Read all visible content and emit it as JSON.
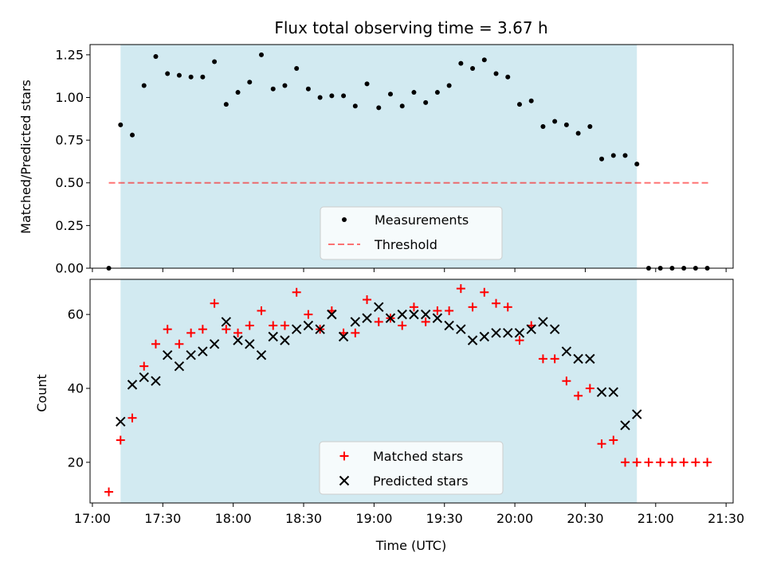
{
  "title": "Flux total observing time = 3.67 h",
  "colors": {
    "shade": "#add8e6",
    "measurement": "#000000",
    "threshold": "#ff0000",
    "matched": "#ff0000",
    "predicted": "#000000"
  },
  "chart_data": [
    {
      "type": "scatter",
      "ylabel": "Matched/Predicted stars",
      "ylim": [
        0,
        1.31
      ],
      "yticks": [
        0.0,
        0.25,
        0.5,
        0.75,
        1.0,
        1.25
      ],
      "ytick_labels": [
        "0.00",
        "0.25",
        "0.50",
        "0.75",
        "1.00",
        "1.25"
      ],
      "shaded_interval": {
        "start": "17:12",
        "end": "20:52",
        "color": "lightblue"
      },
      "legend": {
        "position": "lower center",
        "entries": [
          "Measurements",
          "Threshold"
        ]
      },
      "threshold": {
        "name": "Threshold",
        "y": 0.5,
        "x_start": "17:07",
        "x_end": "21:23",
        "style": "dashed"
      },
      "series": [
        {
          "name": "Measurements",
          "marker": "dot",
          "x": [
            "17:07",
            "17:12",
            "17:17",
            "17:22",
            "17:27",
            "17:32",
            "17:37",
            "17:42",
            "17:47",
            "17:52",
            "17:57",
            "18:02",
            "18:07",
            "18:12",
            "18:17",
            "18:22",
            "18:27",
            "18:32",
            "18:37",
            "18:42",
            "18:47",
            "18:52",
            "18:57",
            "19:02",
            "19:07",
            "19:12",
            "19:17",
            "19:22",
            "19:27",
            "19:32",
            "19:37",
            "19:42",
            "19:47",
            "19:52",
            "19:57",
            "20:02",
            "20:07",
            "20:12",
            "20:17",
            "20:22",
            "20:27",
            "20:32",
            "20:37",
            "20:42",
            "20:47",
            "20:52",
            "20:57",
            "21:02",
            "21:07",
            "21:12",
            "21:17",
            "21:22"
          ],
          "y": [
            0.0,
            0.84,
            0.78,
            1.07,
            1.24,
            1.14,
            1.13,
            1.12,
            1.12,
            1.21,
            0.96,
            1.03,
            1.09,
            1.25,
            1.05,
            1.07,
            1.17,
            1.05,
            1.0,
            1.01,
            1.01,
            0.95,
            1.08,
            0.94,
            1.02,
            0.95,
            1.03,
            0.97,
            1.03,
            1.07,
            1.2,
            1.17,
            1.22,
            1.14,
            1.12,
            0.96,
            0.98,
            0.83,
            0.86,
            0.84,
            0.79,
            0.83,
            0.64,
            0.66,
            0.66,
            0.61,
            0.0,
            0.0,
            0.0,
            0.0,
            0.0,
            0.0
          ]
        }
      ]
    },
    {
      "type": "scatter",
      "xlabel": "Time (UTC)",
      "ylabel": "Count",
      "ylim": [
        9,
        69.5
      ],
      "yticks": [
        20,
        40,
        60
      ],
      "ytick_labels": [
        "20",
        "40",
        "60"
      ],
      "xlim": [
        "16:59",
        "21:33"
      ],
      "xticks": [
        "17:00",
        "17:30",
        "18:00",
        "18:30",
        "19:00",
        "19:30",
        "20:00",
        "20:30",
        "21:00",
        "21:30"
      ],
      "shaded_interval": {
        "start": "17:12",
        "end": "20:52",
        "color": "lightblue"
      },
      "legend": {
        "position": "lower center",
        "entries": [
          "Matched stars",
          "Predicted stars"
        ]
      },
      "series": [
        {
          "name": "Matched stars",
          "marker": "plus",
          "x": [
            "17:07",
            "17:12",
            "17:17",
            "17:22",
            "17:27",
            "17:32",
            "17:37",
            "17:42",
            "17:47",
            "17:52",
            "17:57",
            "18:02",
            "18:07",
            "18:12",
            "18:17",
            "18:22",
            "18:27",
            "18:32",
            "18:37",
            "18:42",
            "18:47",
            "18:52",
            "18:57",
            "19:02",
            "19:07",
            "19:12",
            "19:17",
            "19:22",
            "19:27",
            "19:32",
            "19:37",
            "19:42",
            "19:47",
            "19:52",
            "19:57",
            "20:02",
            "20:07",
            "20:12",
            "20:17",
            "20:22",
            "20:27",
            "20:32",
            "20:37",
            "20:42",
            "20:47",
            "20:52",
            "20:57",
            "21:02",
            "21:07",
            "21:12",
            "21:17",
            "21:22"
          ],
          "y": [
            12,
            26,
            32,
            46,
            52,
            56,
            52,
            55,
            56,
            63,
            56,
            55,
            57,
            61,
            57,
            57,
            66,
            60,
            56,
            61,
            55,
            55,
            64,
            58,
            59,
            57,
            62,
            58,
            61,
            61,
            67,
            62,
            66,
            63,
            62,
            53,
            57,
            48,
            48,
            42,
            38,
            40,
            25,
            26,
            20,
            20,
            20,
            20,
            20,
            20,
            20,
            20
          ]
        },
        {
          "name": "Predicted stars",
          "marker": "x",
          "x": [
            "17:12",
            "17:17",
            "17:22",
            "17:27",
            "17:32",
            "17:37",
            "17:42",
            "17:47",
            "17:52",
            "17:57",
            "18:02",
            "18:07",
            "18:12",
            "18:17",
            "18:22",
            "18:27",
            "18:32",
            "18:37",
            "18:42",
            "18:47",
            "18:52",
            "18:57",
            "19:02",
            "19:07",
            "19:12",
            "19:17",
            "19:22",
            "19:27",
            "19:32",
            "19:37",
            "19:42",
            "19:47",
            "19:52",
            "19:57",
            "20:02",
            "20:07",
            "20:12",
            "20:17",
            "20:22",
            "20:27",
            "20:32",
            "20:37",
            "20:42",
            "20:47",
            "20:52"
          ],
          "y": [
            31,
            41,
            43,
            42,
            49,
            46,
            49,
            50,
            52,
            58,
            53,
            52,
            49,
            54,
            53,
            56,
            57,
            56,
            60,
            54,
            58,
            59,
            62,
            59,
            60,
            60,
            60,
            59,
            57,
            56,
            53,
            54,
            55,
            55,
            55,
            56,
            58,
            56,
            50,
            48,
            48,
            39,
            39,
            30,
            33
          ]
        }
      ]
    }
  ]
}
